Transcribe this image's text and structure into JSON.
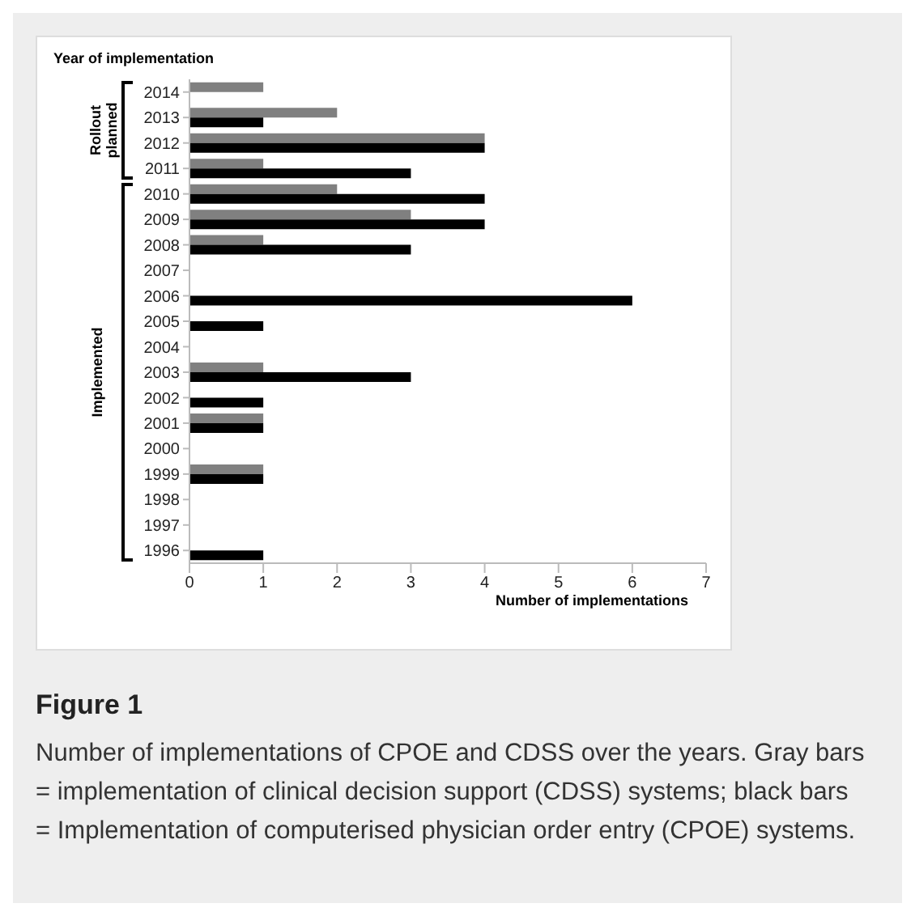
{
  "chart_data": {
    "type": "bar",
    "orientation": "horizontal",
    "ylabel": "Year of implementation",
    "xlabel": "Number of implementations",
    "categories": [
      "2014",
      "2013",
      "2012",
      "2011",
      "2010",
      "2009",
      "2008",
      "2007",
      "2006",
      "2005",
      "2004",
      "2003",
      "2002",
      "2001",
      "2000",
      "1999",
      "1998",
      "1997",
      "1996"
    ],
    "series": [
      {
        "color": "#808080",
        "values": [
          1,
          2,
          4,
          1,
          2,
          3,
          1,
          0,
          0,
          0,
          0,
          1,
          0,
          1,
          0,
          1,
          0,
          0,
          0
        ]
      },
      {
        "color": "#000000",
        "values": [
          0,
          1,
          4,
          3,
          4,
          4,
          3,
          0,
          6,
          1,
          0,
          3,
          1,
          1,
          0,
          1,
          0,
          0,
          1
        ]
      }
    ],
    "xlim": [
      0,
      7
    ],
    "xticks": [
      0,
      1,
      2,
      3,
      4,
      5,
      6,
      7
    ],
    "grid": false,
    "legend": false,
    "annotations": [
      "Rollout planned",
      "Implemented",
      "Figure 1",
      "Number of implementations of CPOE and CDSS over the years. Gray bars = implementation of clinical decision support (CDSS) systems; black bars = Implementation of computerised physician order entry (CPOE) systems."
    ]
  }
}
